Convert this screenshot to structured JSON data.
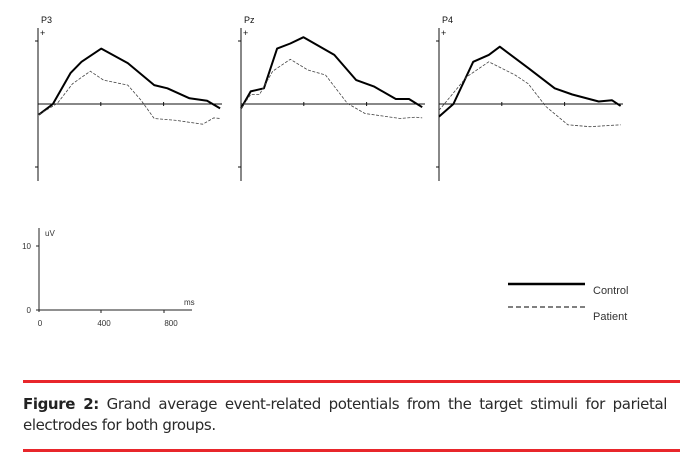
{
  "figure": {
    "label": "Figure 2:",
    "caption": "Grand average event-related potentials from the target stimuli for parietal electrodes for both groups.",
    "accent_color": "#e8262b"
  },
  "chart_data": {
    "type": "line",
    "xlabel": "ms",
    "ylabel": "uV",
    "polarity_label": "+",
    "xlim": [
      0,
      1160
    ],
    "ylim": [
      -10,
      10
    ],
    "scale_x_ticks": [
      "0",
      "400",
      "800"
    ],
    "scale_y_ticks": [
      "0",
      "10"
    ],
    "legend": [
      {
        "name": "Control",
        "style": "solid"
      },
      {
        "name": "Patient",
        "style": "dashed"
      }
    ],
    "legend_position": "bottom-right",
    "panels": [
      {
        "title": "P3",
        "series": [
          {
            "name": "Control",
            "x": [
              5,
              95,
              207,
              277,
              403,
              572,
              740,
              824,
              965,
              1077,
              1160
            ],
            "y": [
              -1.7,
              0,
              4.9,
              6.7,
              8.8,
              6.5,
              3.0,
              2.5,
              0.9,
              0.5,
              -0.7
            ]
          },
          {
            "name": "Patient",
            "x": [
              5,
              123,
              220,
              333,
              417,
              572,
              656,
              740,
              881,
              1049,
              1120,
              1160
            ],
            "y": [
              -1.7,
              0.1,
              3.2,
              5.2,
              3.8,
              3.0,
              0.6,
              -2.3,
              -2.6,
              -3.2,
              -2.2,
              -2.3
            ]
          }
        ]
      },
      {
        "title": "Pz",
        "series": [
          {
            "name": "Control",
            "x": [
              0,
              62,
              146,
              230,
              314,
              398,
              594,
              734,
              846,
              986,
              1070,
              1154
            ],
            "y": [
              -0.7,
              2.0,
              2.5,
              8.8,
              9.6,
              10.6,
              7.8,
              3.8,
              2.8,
              0.8,
              0.8,
              -0.5
            ]
          },
          {
            "name": "Patient",
            "x": [
              0,
              62,
              118,
              202,
              314,
              426,
              538,
              678,
              790,
              1014,
              1112,
              1154
            ],
            "y": [
              -0.7,
              1.5,
              1.5,
              5.2,
              7.1,
              5.4,
              4.6,
              0.1,
              -1.5,
              -2.3,
              -2.1,
              -2.2
            ]
          }
        ]
      },
      {
        "title": "P4",
        "series": [
          {
            "name": "Control",
            "x": [
              0,
              92,
              218,
              317,
              387,
              569,
              737,
              849,
              1017,
              1101,
              1157
            ],
            "y": [
              -2.0,
              0,
              6.7,
              7.8,
              9.1,
              5.7,
              2.5,
              1.5,
              0.4,
              0.6,
              -0.3
            ]
          },
          {
            "name": "Patient",
            "x": [
              0,
              64,
              176,
              317,
              485,
              569,
              681,
              821,
              961,
              1157
            ],
            "y": [
              -1.0,
              0.9,
              4.3,
              6.7,
              4.6,
              3.2,
              -0.4,
              -3.3,
              -3.6,
              -3.3
            ]
          }
        ]
      }
    ]
  }
}
